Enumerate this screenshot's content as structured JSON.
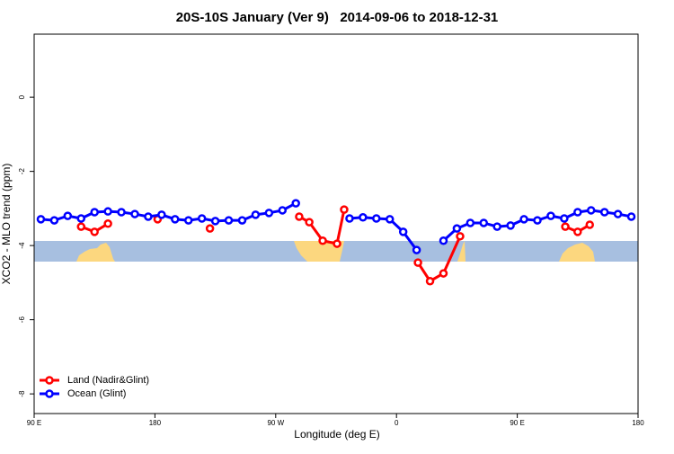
{
  "chart_data": {
    "type": "line",
    "title": "20S-10S January (Ver 9)   2014-09-06 to 2018-12-31",
    "x_label": "Longitude (deg E)",
    "y_label": "XCO2 - MLO trend (ppm)",
    "xlim": [
      90,
      540
    ],
    "ylim": [
      -8.53,
      1.7
    ],
    "xticks": [
      {
        "value": 90,
        "label": "90 E"
      },
      {
        "value": 180,
        "label": "180"
      },
      {
        "value": 270,
        "label": "90 W"
      },
      {
        "value": 360,
        "label": "0"
      },
      {
        "value": 450,
        "label": "90 E"
      },
      {
        "value": 540,
        "label": "180"
      }
    ],
    "yticks": [
      0,
      -2,
      -4,
      -6,
      -8
    ],
    "legend": "lower left",
    "series": [
      {
        "name": "Land (Nadir&Glint)",
        "color": "#ff0000",
        "x": [
          125,
          135,
          145,
          null,
          182,
          null,
          221,
          null,
          287.5,
          295,
          305,
          315.7,
          321,
          null,
          376,
          385,
          395,
          407.4,
          null,
          485.8,
          495,
          504
        ],
        "values": [
          -3.49,
          -3.63,
          -3.41,
          null,
          -3.29,
          null,
          -3.54,
          null,
          -3.22,
          -3.37,
          -3.87,
          -3.95,
          -3.03,
          null,
          -4.46,
          -4.96,
          -4.75,
          -3.75,
          null,
          -3.49,
          -3.63,
          -3.44
        ]
      },
      {
        "name": "Ocean (Glint)",
        "color": "#0000ff",
        "x": [
          95,
          105,
          115,
          125,
          135,
          145,
          155,
          165,
          175,
          185,
          195,
          205,
          215,
          225,
          235,
          245,
          255,
          265,
          275,
          285,
          295,
          305,
          315,
          325,
          335,
          345,
          355,
          365,
          375,
          385,
          395,
          405,
          415,
          425,
          435,
          445,
          455,
          465,
          475,
          485,
          495,
          505,
          515,
          525,
          535
        ],
        "values": [
          -3.29,
          -3.32,
          -3.2,
          -3.27,
          -3.1,
          -3.08,
          -3.1,
          -3.15,
          -3.22,
          -3.17,
          -3.29,
          -3.32,
          -3.27,
          -3.34,
          -3.32,
          -3.32,
          -3.17,
          -3.12,
          -3.05,
          -2.86,
          null,
          null,
          null,
          -3.27,
          -3.24,
          -3.27,
          -3.29,
          -3.63,
          -4.12,
          null,
          -3.87,
          -3.54,
          -3.39,
          -3.39,
          -3.49,
          -3.46,
          -3.29,
          -3.32,
          -3.2,
          -3.27,
          -3.1,
          -3.05,
          -3.1,
          -3.15,
          -3.22
        ]
      }
    ]
  }
}
